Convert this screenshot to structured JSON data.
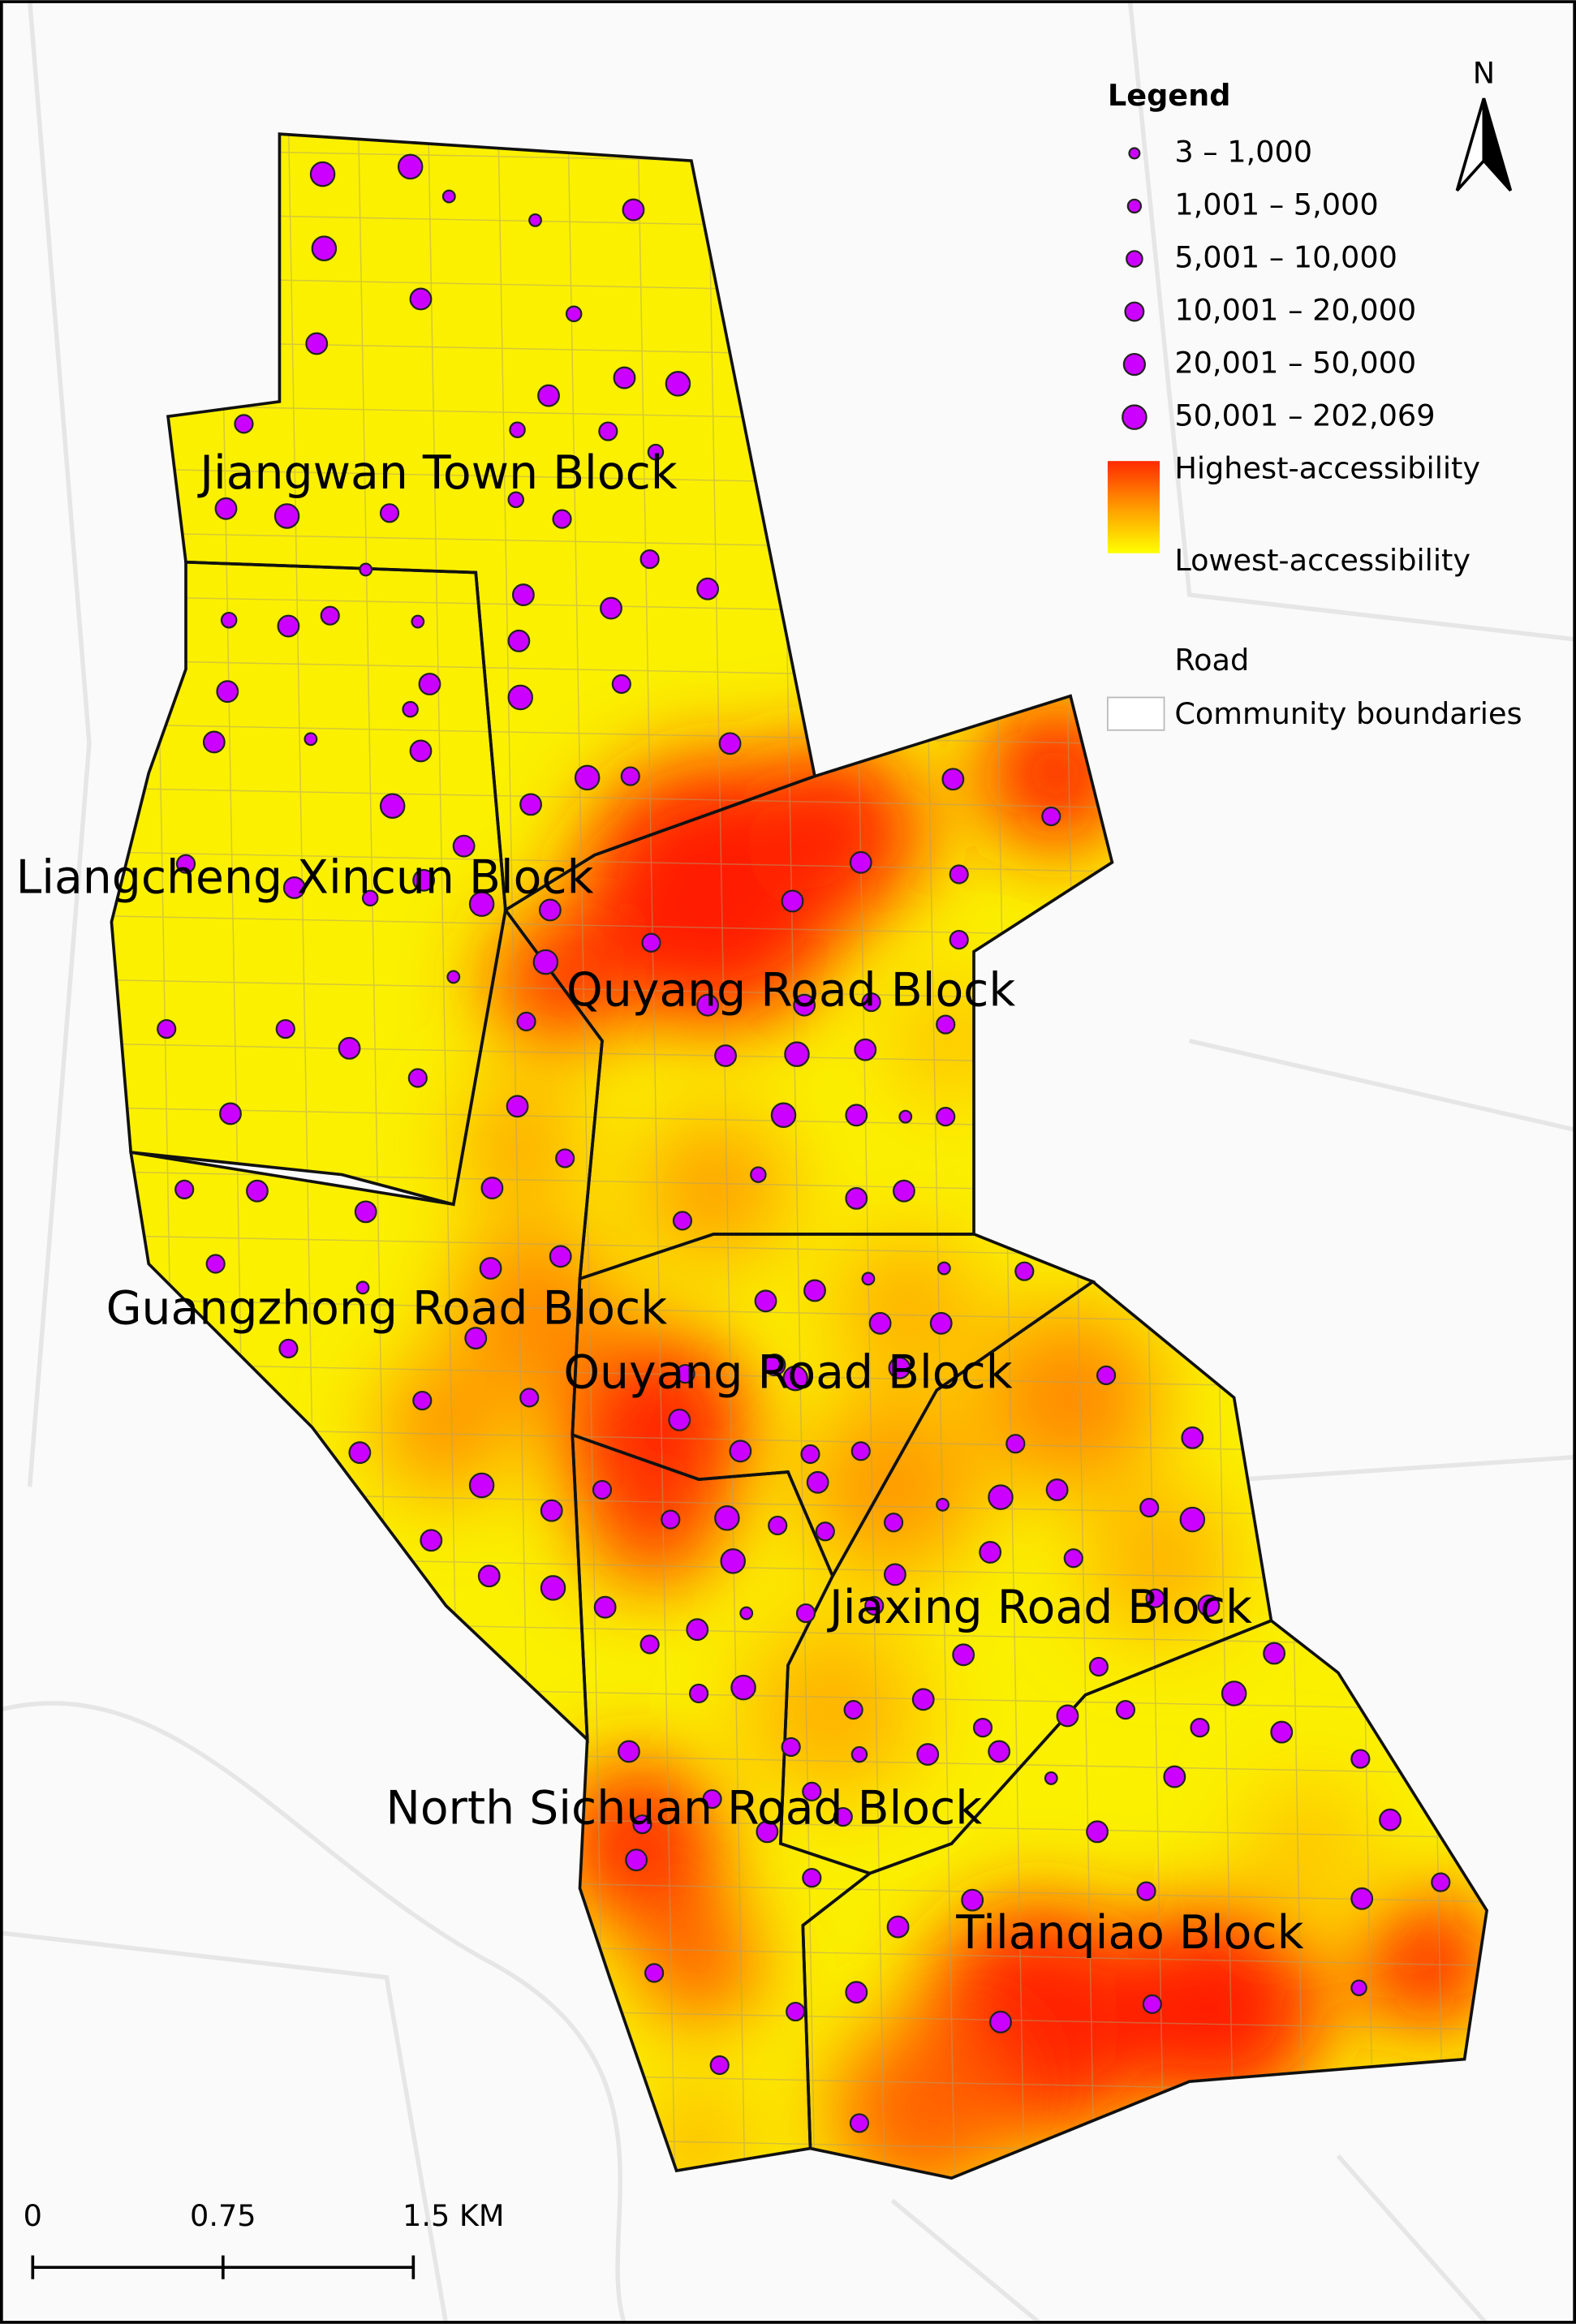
{
  "map": {
    "blocks": [
      "Jiangwan Town Block",
      "Liangcheng Xincun Block",
      "Quyang Road Block",
      "Guangzhong Road Block",
      "Ouyang Road Block",
      "Jiaxing Road Block",
      "North Sichuan Road Block",
      "Tilanqiao Block"
    ],
    "legend": {
      "title": "Legend",
      "classes": [
        "3 – 1,000",
        "1,001 – 5,000",
        "5,001 – 10,000",
        "10,001 – 20,000",
        "20,001 – 50,000",
        "50,001 – 202,069"
      ],
      "high": "Highest-accessibility",
      "low": "Lowest-accessibility",
      "road": "Road",
      "boundaries": "Community boundaries"
    },
    "north": "N",
    "scale": [
      "0",
      "0.75",
      "1.5 KM"
    ]
  }
}
